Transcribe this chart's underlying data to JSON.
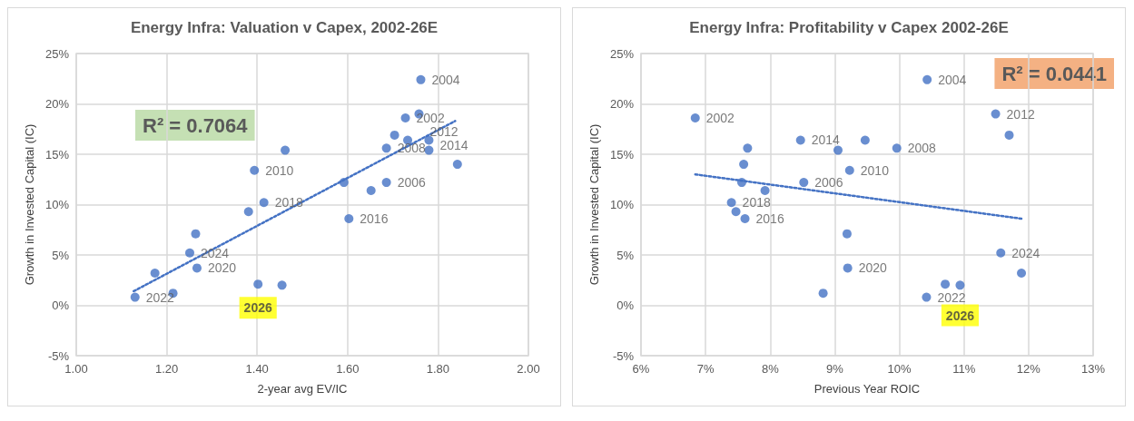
{
  "chart_data": [
    {
      "type": "scatter",
      "title": "Energy Infra: Valuation v Capex, 2002-26E",
      "xlabel": "2-year avg EV/IC",
      "ylabel": "Growth in Invested Capital (IC)",
      "xlim": [
        1,
        2
      ],
      "xticks": [
        {
          "value": 1,
          "label": "1.00"
        },
        {
          "value": 1.2,
          "label": "1.20"
        },
        {
          "value": 1.4,
          "label": "1.40"
        },
        {
          "value": 1.6,
          "label": "1.60"
        },
        {
          "value": 1.8,
          "label": "1.80"
        },
        {
          "value": 2,
          "label": "2.00"
        }
      ],
      "ylim": [
        -5,
        25
      ],
      "yticks": [
        {
          "value": -5,
          "label": "-5%"
        },
        {
          "value": 0,
          "label": "0%"
        },
        {
          "value": 5,
          "label": "5%"
        },
        {
          "value": 10,
          "label": "10%"
        },
        {
          "value": 15,
          "label": "15%"
        },
        {
          "value": 20,
          "label": "20%"
        },
        {
          "value": 25,
          "label": "25%"
        }
      ],
      "grid": true,
      "marker": "circle",
      "series": [
        {
          "type": "scatter",
          "color": "#4472c4",
          "x": [
            1.728,
            1.704,
            1.762,
            1.733,
            1.686,
            1.78,
            1.686,
            1.462,
            1.394,
            1.843,
            1.758,
            1.592,
            1.78,
            1.652,
            1.603,
            1.264,
            1.415,
            1.381,
            1.267,
            1.174,
            1.13,
            1.214,
            1.251,
            1.455,
            1.402
          ],
          "values": [
            18.6,
            16.9,
            22.4,
            16.4,
            12.2,
            15.4,
            15.6,
            15.4,
            13.4,
            14.0,
            19.0,
            12.2,
            16.4,
            11.4,
            8.6,
            7.1,
            10.2,
            9.3,
            3.7,
            3.2,
            0.8,
            1.2,
            5.2,
            2.0,
            2.1
          ]
        },
        {
          "type": "line",
          "color": "#4472c4",
          "marker": "none",
          "line_style": "dotted",
          "x": [
            1.127,
            1.838
          ],
          "values": [
            1.4,
            18.3
          ]
        }
      ],
      "annotations": [
        "R² = 0.7064",
        {
          "text": "2002",
          "x": 1.728,
          "y": 18.6
        },
        {
          "text": "2004",
          "x": 1.762,
          "y": 22.4
        },
        {
          "text": "2006",
          "x": 1.686,
          "y": 12.2
        },
        {
          "text": "2008",
          "x": 1.686,
          "y": 15.6
        },
        {
          "text": "2010",
          "x": 1.394,
          "y": 13.4
        },
        {
          "text": "2012",
          "x": 1.758,
          "y": 19.0
        },
        {
          "text": "2014",
          "x": 1.78,
          "y": 16.4
        },
        {
          "text": "2016",
          "x": 1.603,
          "y": 8.6
        },
        {
          "text": "2018",
          "x": 1.415,
          "y": 10.2
        },
        {
          "text": "2020",
          "x": 1.267,
          "y": 3.7
        },
        {
          "text": "2022",
          "x": 1.13,
          "y": 0.8
        },
        {
          "text": "2024",
          "x": 1.251,
          "y": 5.2
        },
        {
          "text": "2026",
          "x": 1.402,
          "y": 2.1
        }
      ]
    },
    {
      "type": "scatter",
      "title": "Energy Infra: Profitability v Capex 2002-26E",
      "xlabel": "Previous Year ROIC",
      "ylabel": "Growth in Invested Capital (IC)",
      "xlim": [
        6,
        13
      ],
      "xticks": [
        {
          "value": 6,
          "label": "6%"
        },
        {
          "value": 7,
          "label": "7%"
        },
        {
          "value": 8,
          "label": "8%"
        },
        {
          "value": 9,
          "label": "9%"
        },
        {
          "value": 10,
          "label": "10%"
        },
        {
          "value": 11,
          "label": "11%"
        },
        {
          "value": 12,
          "label": "12%"
        },
        {
          "value": 13,
          "label": "13%"
        }
      ],
      "ylim": [
        -5,
        25
      ],
      "yticks": [
        {
          "value": -5,
          "label": "-5%"
        },
        {
          "value": 0,
          "label": "0%"
        },
        {
          "value": 5,
          "label": "5%"
        },
        {
          "value": 10,
          "label": "10%"
        },
        {
          "value": 15,
          "label": "15%"
        },
        {
          "value": 20,
          "label": "20%"
        },
        {
          "value": 25,
          "label": "25%"
        }
      ],
      "grid": true,
      "marker": "circle",
      "series": [
        {
          "type": "scatter",
          "color": "#4472c4",
          "x": [
            6.84,
            11.7,
            10.43,
            9.47,
            8.52,
            9.05,
            9.96,
            7.65,
            9.23,
            7.59,
            11.49,
            7.56,
            8.47,
            7.92,
            7.61,
            9.19,
            7.4,
            7.47,
            9.2,
            11.89,
            10.42,
            8.82,
            11.57,
            10.71,
            10.94
          ],
          "values": [
            18.6,
            16.9,
            22.4,
            16.4,
            12.2,
            15.4,
            15.6,
            15.6,
            13.4,
            14.0,
            19.0,
            12.2,
            16.4,
            11.4,
            8.6,
            7.1,
            10.2,
            9.3,
            3.7,
            3.2,
            0.8,
            1.2,
            5.2,
            2.1,
            2.0
          ]
        },
        {
          "type": "line",
          "color": "#4472c4",
          "marker": "none",
          "line_style": "dotted",
          "x": [
            6.84,
            11.89
          ],
          "values": [
            13.0,
            8.6
          ]
        }
      ],
      "annotations": [
        "R² = 0.0441",
        {
          "text": "2002",
          "x": 6.84,
          "y": 18.6
        },
        {
          "text": "2004",
          "x": 10.43,
          "y": 22.4
        },
        {
          "text": "2006",
          "x": 8.52,
          "y": 12.2
        },
        {
          "text": "2008",
          "x": 9.96,
          "y": 15.6
        },
        {
          "text": "2010",
          "x": 9.23,
          "y": 13.4
        },
        {
          "text": "2012",
          "x": 11.49,
          "y": 19.0
        },
        {
          "text": "2014",
          "x": 8.47,
          "y": 16.4
        },
        {
          "text": "2016",
          "x": 7.61,
          "y": 8.6
        },
        {
          "text": "2018",
          "x": 7.4,
          "y": 10.2
        },
        {
          "text": "2020",
          "x": 9.2,
          "y": 3.7
        },
        {
          "text": "2022",
          "x": 10.42,
          "y": 0.8
        },
        {
          "text": "2024",
          "x": 11.57,
          "y": 5.2
        },
        {
          "text": "2026",
          "x": 10.94,
          "y": 2.0
        }
      ]
    }
  ]
}
